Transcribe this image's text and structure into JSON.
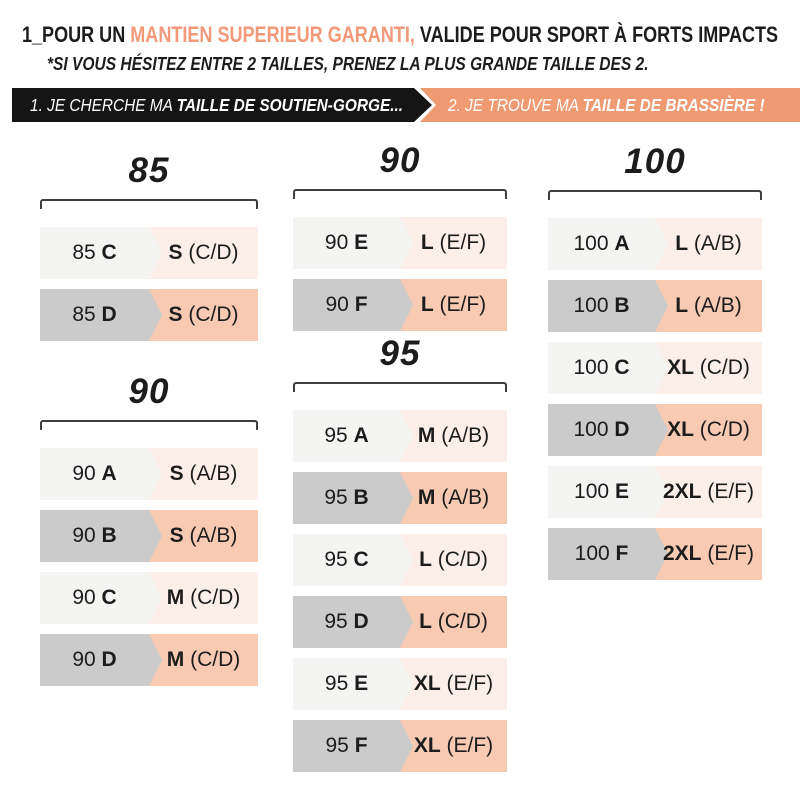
{
  "header": {
    "title_prefix": "1_POUR UN ",
    "title_highlight": "MANTIEN SUPERIEUR GARANTI,",
    "title_suffix": " VALIDE POUR SPORT À FORTS IMPACTS",
    "subtitle": "*SI VOUS HÉSITEZ ENTRE 2 TAILLES, PRENEZ LA PLUS GRANDE TAILLE DES 2."
  },
  "steps": {
    "step1_prefix": "1. JE CHERCHE MA ",
    "step1_bold": "TAILLE DE SOUTIEN-GORGE...",
    "step2_prefix": "2. JE TROUVE MA ",
    "step2_bold": "TAILLE DE BRASSIÈRE !"
  },
  "colors": {
    "accent_text": "#F2997A",
    "accent_bar": "#F09A74",
    "bar_dark": "#151515",
    "row_light_left": "#F4F4F3",
    "row_light_right": "#FCEFE9",
    "row_dark_left": "#CBCBCB",
    "row_dark_right": "#F7CAB1",
    "bracket": "#3F3F3F"
  },
  "groups": [
    {
      "title": "85",
      "rows": [
        {
          "band": "85",
          "cup": "C",
          "size": "S",
          "range": "(C/D)"
        },
        {
          "band": "85",
          "cup": "D",
          "size": "S",
          "range": "(C/D)"
        }
      ]
    },
    {
      "title": "90",
      "rows": [
        {
          "band": "90",
          "cup": "A",
          "size": "S",
          "range": "(A/B)"
        },
        {
          "band": "90",
          "cup": "B",
          "size": "S",
          "range": "(A/B)"
        },
        {
          "band": "90",
          "cup": "C",
          "size": "M",
          "range": "(C/D)"
        },
        {
          "band": "90",
          "cup": "D",
          "size": "M",
          "range": "(C/D)"
        }
      ]
    },
    {
      "title": "90",
      "rows": [
        {
          "band": "90",
          "cup": "E",
          "size": "L",
          "range": "(E/F)"
        },
        {
          "band": "90",
          "cup": "F",
          "size": "L",
          "range": "(E/F)"
        }
      ]
    },
    {
      "title": "95",
      "rows": [
        {
          "band": "95",
          "cup": "A",
          "size": "M",
          "range": "(A/B)"
        },
        {
          "band": "95",
          "cup": "B",
          "size": "M",
          "range": "(A/B)"
        },
        {
          "band": "95",
          "cup": "C",
          "size": "L",
          "range": "(C/D)"
        },
        {
          "band": "95",
          "cup": "D",
          "size": "L",
          "range": "(C/D)"
        },
        {
          "band": "95",
          "cup": "E",
          "size": "XL",
          "range": "(E/F)"
        },
        {
          "band": "95",
          "cup": "F",
          "size": "XL",
          "range": "(E/F)"
        }
      ]
    },
    {
      "title": "100",
      "rows": [
        {
          "band": "100",
          "cup": "A",
          "size": "L",
          "range": "(A/B)"
        },
        {
          "band": "100",
          "cup": "B",
          "size": "L",
          "range": "(A/B)"
        },
        {
          "band": "100",
          "cup": "C",
          "size": "XL",
          "range": "(C/D)"
        },
        {
          "band": "100",
          "cup": "D",
          "size": "XL",
          "range": "(C/D)"
        },
        {
          "band": "100",
          "cup": "E",
          "size": "2XL",
          "range": "(E/F)"
        },
        {
          "band": "100",
          "cup": "F",
          "size": "2XL",
          "range": "(E/F)"
        }
      ]
    }
  ]
}
